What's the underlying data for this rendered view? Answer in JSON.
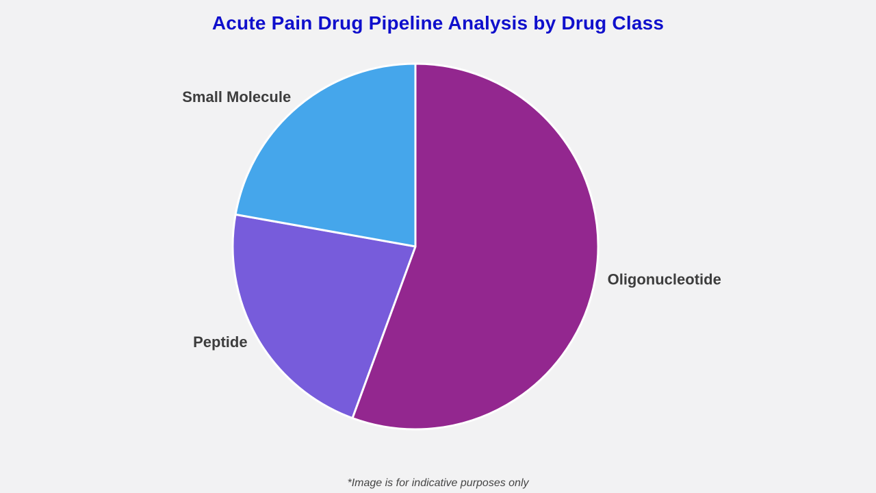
{
  "chart_data": {
    "type": "pie",
    "title": "Acute Pain Drug Pipeline Analysis by Drug Class",
    "slices": [
      {
        "label": "Oligonucleotide",
        "value": 55.6,
        "color": "#93278f"
      },
      {
        "label": "Peptide",
        "value": 22.2,
        "color": "#775cdb"
      },
      {
        "label": "Small Molecule",
        "value": 22.2,
        "color": "#45a6eb"
      }
    ],
    "start_angle": "12 o'clock",
    "direction": "clockwise",
    "slice_border_color": "#ffffff"
  },
  "footnote": "*Image is for indicative purposes only",
  "colors": {
    "background": "#f2f2f3",
    "title": "#0f0fcc",
    "label": "#3d3d3d"
  }
}
